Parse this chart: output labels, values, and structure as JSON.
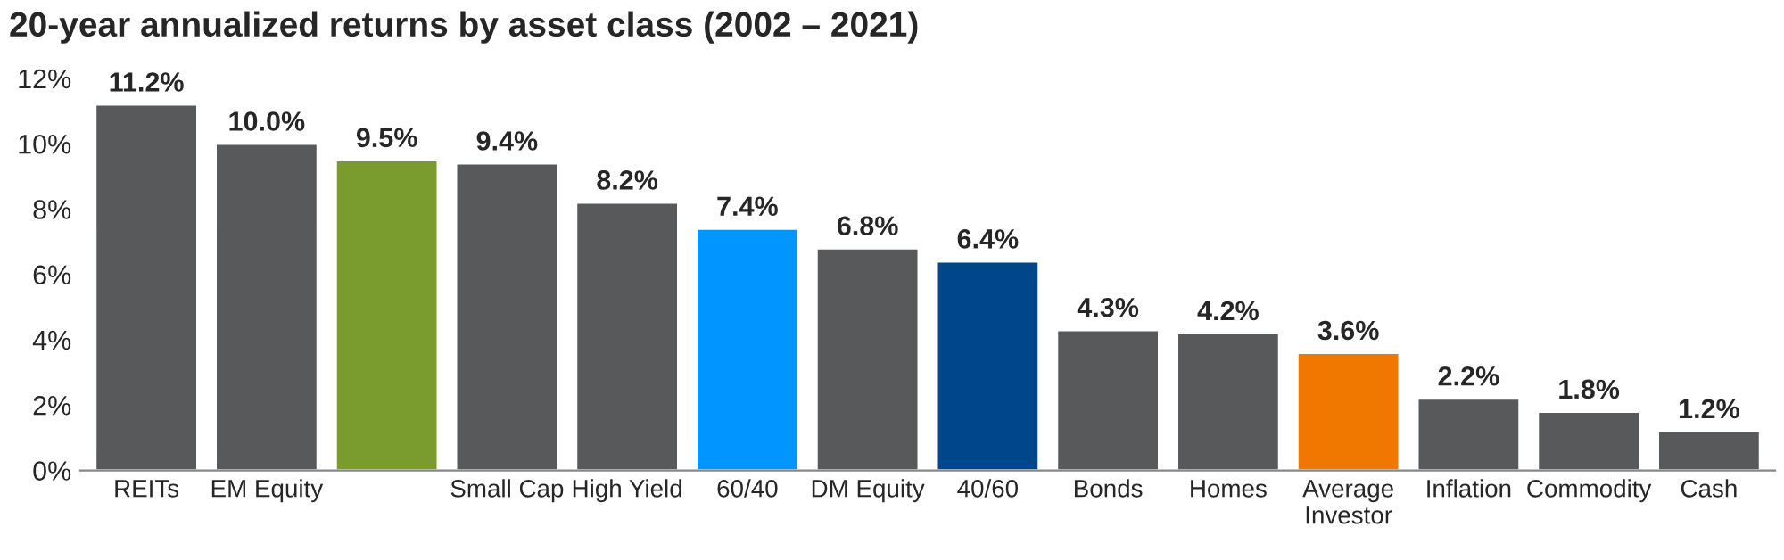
{
  "chart_data": {
    "type": "bar",
    "title": "20-year annualized returns by asset class (2002 – 2021)",
    "categories": [
      "REITs",
      "EM Equity",
      null,
      "Small Cap",
      "High Yield",
      "60/40",
      "DM Equity",
      "40/60",
      "Bonds",
      "Homes",
      "Average Investor",
      "Inflation",
      "Commodity",
      "Cash"
    ],
    "values": [
      11.2,
      10.0,
      9.5,
      9.4,
      8.2,
      7.4,
      6.8,
      6.4,
      4.3,
      4.2,
      3.6,
      2.2,
      1.8,
      1.2
    ],
    "colors": [
      "#58595b",
      "#58595b",
      "#7a9c2e",
      "#58595b",
      "#58595b",
      "#0095ff",
      "#58595b",
      "#00468b",
      "#58595b",
      "#58595b",
      "#f07800",
      "#58595b",
      "#58595b",
      "#58595b"
    ],
    "value_labels": [
      "11.2%",
      "10.0%",
      "9.5%",
      "9.4%",
      "8.2%",
      "7.4%",
      "6.8%",
      "6.4%",
      "4.3%",
      "4.2%",
      "3.6%",
      "2.2%",
      "1.8%",
      "1.2%"
    ],
    "ylim": [
      0,
      12
    ],
    "yticks": [
      {
        "value": 0,
        "label": "0%"
      },
      {
        "value": 2,
        "label": "2%"
      },
      {
        "value": 4,
        "label": "4%"
      },
      {
        "value": 6,
        "label": "6%"
      },
      {
        "value": 8,
        "label": "8%"
      },
      {
        "value": 10,
        "label": "10%"
      },
      {
        "value": 12,
        "label": "12%"
      }
    ],
    "grid": false
  }
}
